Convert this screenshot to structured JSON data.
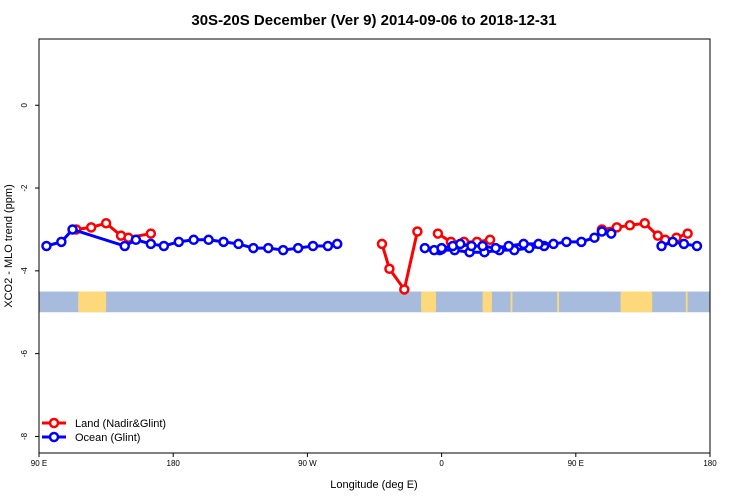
{
  "chart_data": {
    "type": "line",
    "title": "30S-20S December (Ver 9)   2014-09-06 to 2018-12-31",
    "xlabel": "Longitude (deg E)",
    "ylabel": "XCO2 - MLO trend (ppm)",
    "xlim": [
      90,
      450
    ],
    "ylim": [
      -8.4,
      1.6
    ],
    "x_ticks": [
      {
        "value": 90,
        "label": "90 E"
      },
      {
        "value": 162,
        "label": "180"
      },
      {
        "value": 234,
        "label": "90 W"
      },
      {
        "value": 306,
        "label": "0"
      },
      {
        "value": 378,
        "label": "90 E"
      },
      {
        "value": 450,
        "label": "180"
      }
    ],
    "y_ticks": [
      {
        "value": 0,
        "label": "0"
      },
      {
        "value": -2,
        "label": "-2"
      },
      {
        "value": -4,
        "label": "-4"
      },
      {
        "value": -6,
        "label": "-6"
      },
      {
        "value": -8,
        "label": "-8"
      }
    ],
    "map_strip": {
      "y_top": -4.5,
      "y_bottom": -5.0,
      "ocean_color": "#a7bcdc",
      "land_color": "#fdd97c",
      "land": [
        [
          111,
          126
        ],
        [
          295,
          303
        ],
        [
          328,
          333
        ],
        [
          343,
          344
        ],
        [
          368,
          369
        ],
        [
          402,
          419
        ],
        [
          437,
          438
        ]
      ]
    },
    "legend": {
      "position": "bottom-left"
    },
    "series": [
      {
        "name": "Land (Nadir&Glint)",
        "color": "#ff0000",
        "segments": [
          [
            [
              110,
              -3.0
            ],
            [
              118,
              -2.95
            ],
            [
              126,
              -2.85
            ],
            [
              134,
              -3.15
            ],
            [
              138,
              -3.2
            ],
            [
              150,
              -3.1
            ]
          ],
          [
            [
              274,
              -3.35
            ],
            [
              278,
              -3.95
            ],
            [
              286,
              -4.45
            ],
            [
              293,
              -3.05
            ]
          ],
          [
            [
              304,
              -3.1
            ],
            [
              311,
              -3.3
            ],
            [
              318,
              -3.3
            ],
            [
              325,
              -3.3
            ],
            [
              332,
              -3.25
            ]
          ],
          [
            [
              392,
              -3.0
            ],
            [
              400,
              -2.95
            ],
            [
              407,
              -2.9
            ],
            [
              415,
              -2.85
            ],
            [
              422,
              -3.15
            ],
            [
              426,
              -3.25
            ],
            [
              432,
              -3.2
            ],
            [
              438,
              -3.1
            ]
          ]
        ]
      },
      {
        "name": "Ocean (Glint)",
        "color": "#0000ff",
        "segments": [
          [
            [
              94,
              -3.4
            ],
            [
              102,
              -3.3
            ],
            [
              108,
              -3.0
            ],
            [
              136,
              -3.4
            ],
            [
              142,
              -3.25
            ],
            [
              150,
              -3.35
            ],
            [
              157,
              -3.4
            ],
            [
              165,
              -3.3
            ],
            [
              173,
              -3.25
            ],
            [
              181,
              -3.25
            ],
            [
              189,
              -3.3
            ],
            [
              197,
              -3.35
            ],
            [
              205,
              -3.45
            ],
            [
              213,
              -3.45
            ],
            [
              221,
              -3.5
            ],
            [
              229,
              -3.45
            ],
            [
              237,
              -3.4
            ],
            [
              245,
              -3.4
            ],
            [
              250,
              -3.35
            ]
          ],
          [
            [
              297,
              -3.45
            ],
            [
              305,
              -3.5
            ],
            [
              313,
              -3.5
            ],
            [
              321,
              -3.55
            ],
            [
              329,
              -3.55
            ],
            [
              337,
              -3.5
            ],
            [
              345,
              -3.5
            ],
            [
              353,
              -3.45
            ],
            [
              361,
              -3.4
            ]
          ],
          [
            [
              302,
              -3.5
            ],
            [
              306,
              -3.48
            ]
          ],
          [
            [
              306,
              -3.45
            ],
            [
              312,
              -3.4
            ]
          ],
          [
            [
              316,
              -3.35
            ],
            [
              322,
              -3.4
            ],
            [
              328,
              -3.4
            ],
            [
              335,
              -3.45
            ],
            [
              342,
              -3.4
            ],
            [
              350,
              -3.35
            ],
            [
              358,
              -3.35
            ],
            [
              366,
              -3.35
            ],
            [
              373,
              -3.3
            ],
            [
              381,
              -3.3
            ],
            [
              388,
              -3.2
            ],
            [
              392,
              -3.05
            ],
            [
              397,
              -3.1
            ]
          ],
          [
            [
              424,
              -3.4
            ],
            [
              430,
              -3.3
            ],
            [
              436,
              -3.35
            ],
            [
              443,
              -3.4
            ]
          ]
        ]
      }
    ]
  }
}
